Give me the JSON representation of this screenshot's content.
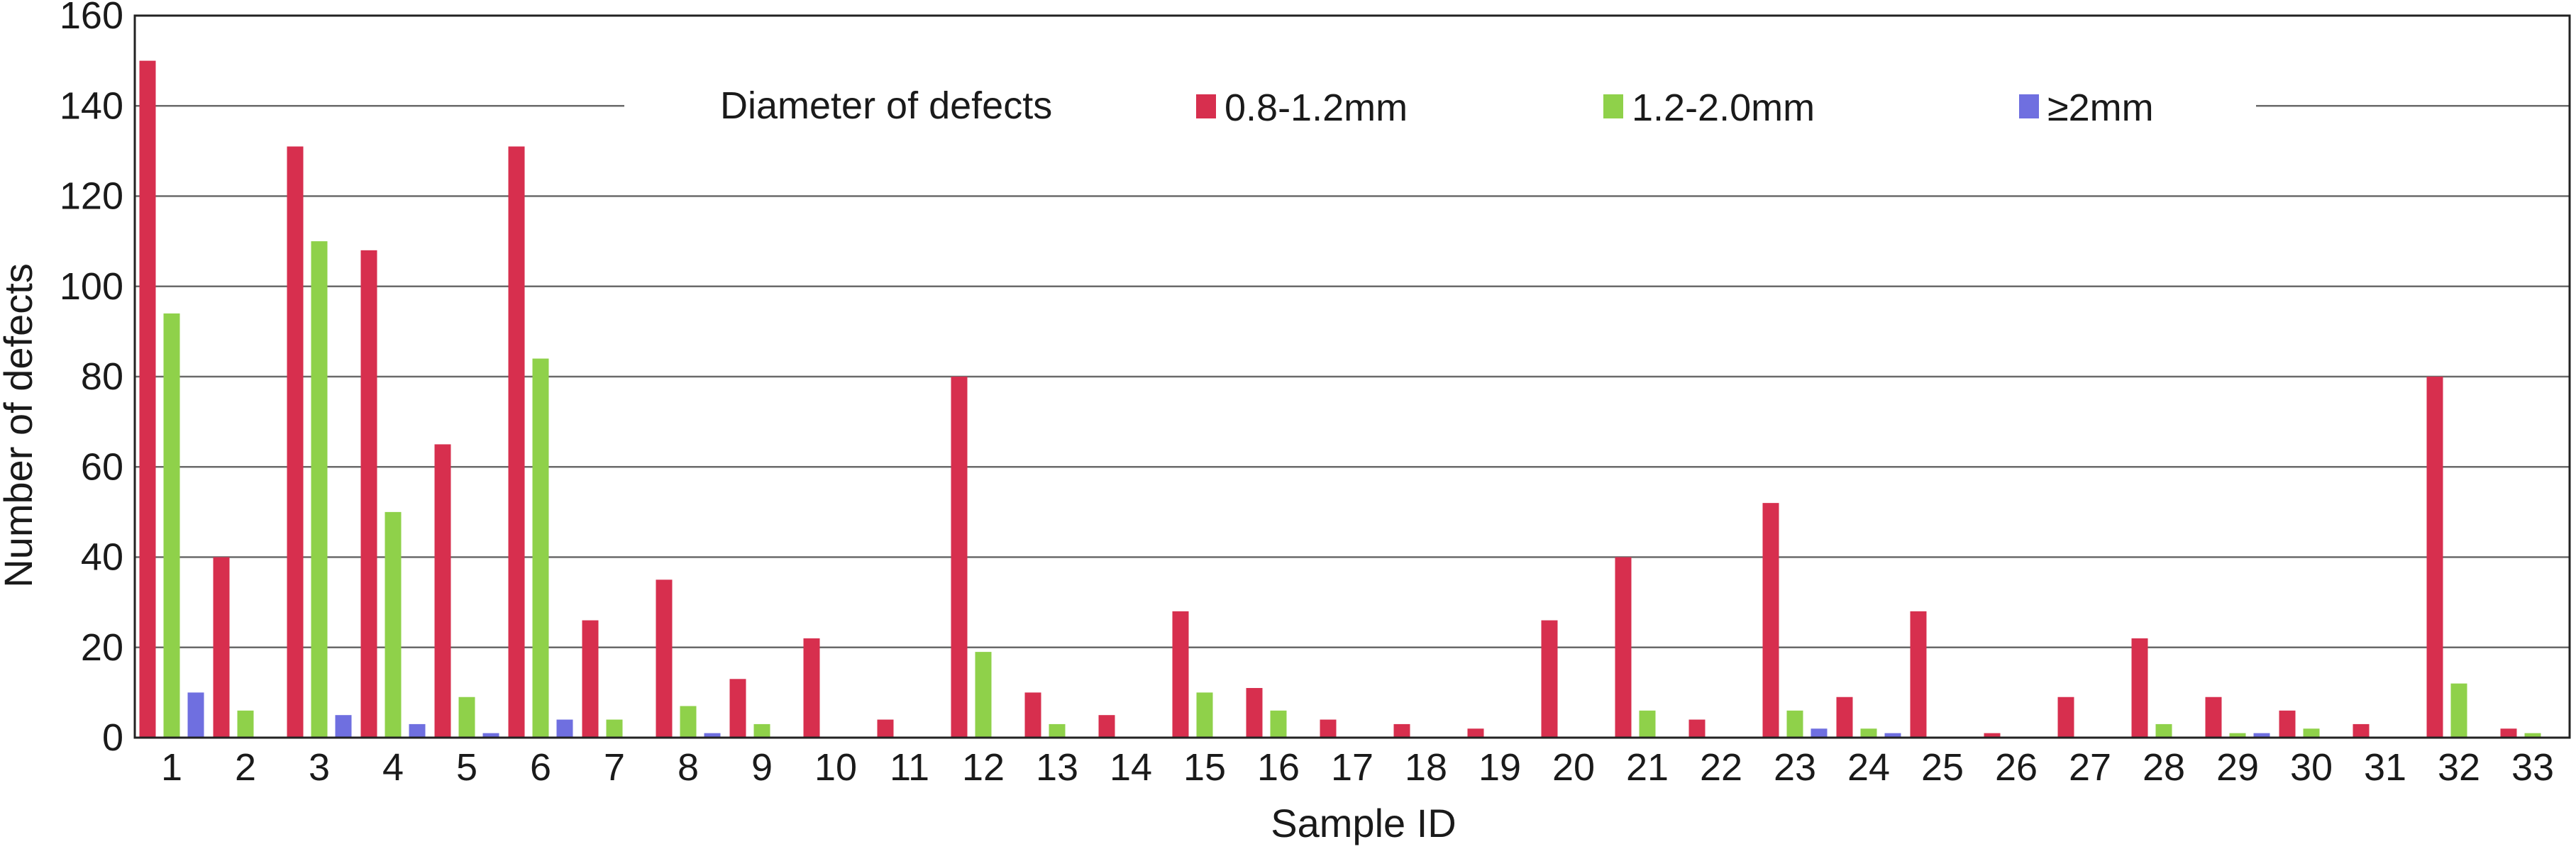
{
  "chart_data": {
    "type": "bar",
    "title": "",
    "xlabel": "Sample ID",
    "ylabel": "Number of defects",
    "ylim": [
      0,
      160
    ],
    "yticks": [
      0,
      20,
      40,
      60,
      80,
      100,
      120,
      140,
      160
    ],
    "grid": true,
    "legend": {
      "title": "Diameter of defects",
      "placement": "top-center"
    },
    "categories": [
      "1",
      "2",
      "3",
      "4",
      "5",
      "6",
      "7",
      "8",
      "9",
      "10",
      "11",
      "12",
      "13",
      "14",
      "15",
      "16",
      "17",
      "18",
      "19",
      "20",
      "21",
      "22",
      "23",
      "24",
      "25",
      "26",
      "27",
      "28",
      "29",
      "30",
      "31",
      "32",
      "33"
    ],
    "series": [
      {
        "name": "0.8-1.2mm",
        "color": "#d72f4e",
        "values": [
          150,
          40,
          131,
          108,
          65,
          131,
          26,
          35,
          13,
          22,
          4,
          80,
          10,
          5,
          28,
          11,
          4,
          3,
          2,
          26,
          40,
          4,
          52,
          9,
          28,
          1,
          9,
          22,
          9,
          6,
          3,
          80,
          2
        ]
      },
      {
        "name": "1.2-2.0mm",
        "color": "#8fd14a",
        "values": [
          94,
          6,
          110,
          50,
          9,
          84,
          4,
          7,
          3,
          0,
          0,
          19,
          3,
          0,
          10,
          6,
          0,
          0,
          0,
          0,
          6,
          0,
          6,
          2,
          0,
          0,
          0,
          3,
          1,
          2,
          0,
          12,
          1
        ]
      },
      {
        "name": "≥2mm",
        "color": "#6f6fe0",
        "values": [
          10,
          0,
          5,
          3,
          1,
          4,
          0,
          1,
          0,
          0,
          0,
          0,
          0,
          0,
          0,
          0,
          0,
          0,
          0,
          0,
          0,
          0,
          2,
          1,
          0,
          0,
          0,
          0,
          1,
          0,
          0,
          0,
          0
        ]
      }
    ]
  }
}
